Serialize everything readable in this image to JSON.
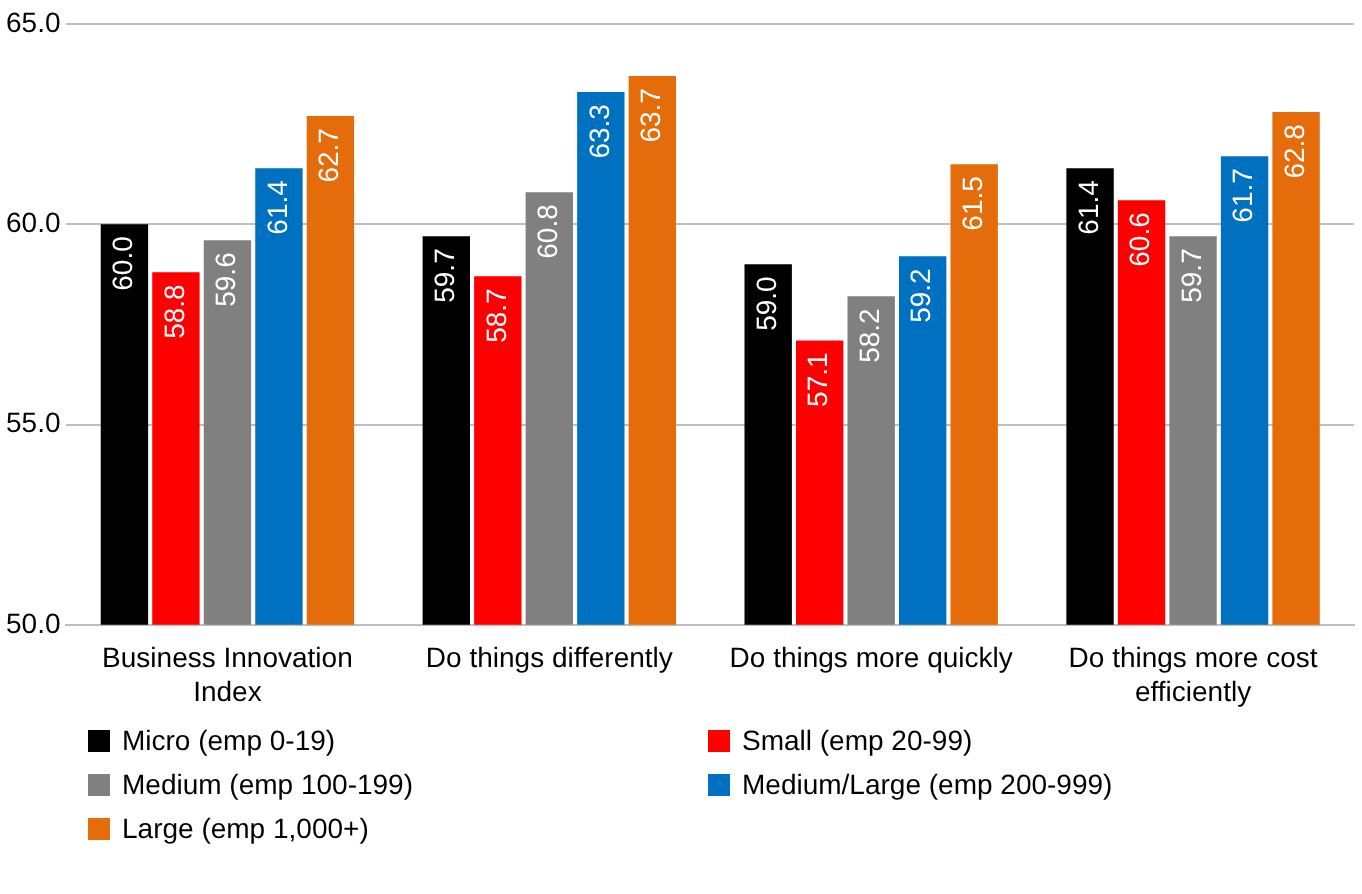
{
  "chart_data": {
    "type": "bar",
    "categories": [
      "Business Innovation Index",
      "Do things differently",
      "Do things more quickly",
      "Do things more cost efficiently"
    ],
    "series": [
      {
        "name": "Micro (emp 0-19)",
        "color": "#000000",
        "values": [
          60.0,
          59.7,
          59.0,
          61.4
        ],
        "value_labels": [
          "60.0",
          "59.7",
          "59.0",
          "61.4"
        ]
      },
      {
        "name": "Small (emp 20-99)",
        "color": "#ff0000",
        "values": [
          58.8,
          58.7,
          57.1,
          60.6
        ],
        "value_labels": [
          "58.8",
          "58.7",
          "57.1",
          "60.6"
        ]
      },
      {
        "name": "Medium (emp 100-199)",
        "color": "#808080",
        "values": [
          59.6,
          60.8,
          58.2,
          59.7
        ],
        "value_labels": [
          "59.6",
          "60.8",
          "58.2",
          "59.7"
        ]
      },
      {
        "name": "Medium/Large (emp 200-999)",
        "color": "#0070c0",
        "values": [
          61.4,
          63.3,
          59.2,
          61.7
        ],
        "value_labels": [
          "61.4",
          "63.3",
          "59.2",
          "61.7"
        ]
      },
      {
        "name": "Large (emp 1,000+)",
        "color": "#e46c0a",
        "values": [
          62.7,
          63.7,
          61.5,
          62.8
        ],
        "value_labels": [
          "62.7",
          "63.7",
          "61.5",
          "62.8"
        ]
      }
    ],
    "ylim": [
      50,
      65
    ],
    "yticks": [
      {
        "value": 50,
        "label": "50.0"
      },
      {
        "value": 55,
        "label": "55.0"
      },
      {
        "value": 60,
        "label": "60.0"
      },
      {
        "value": 65,
        "label": "65.0"
      }
    ],
    "grid": "y",
    "legend": "bottom"
  }
}
